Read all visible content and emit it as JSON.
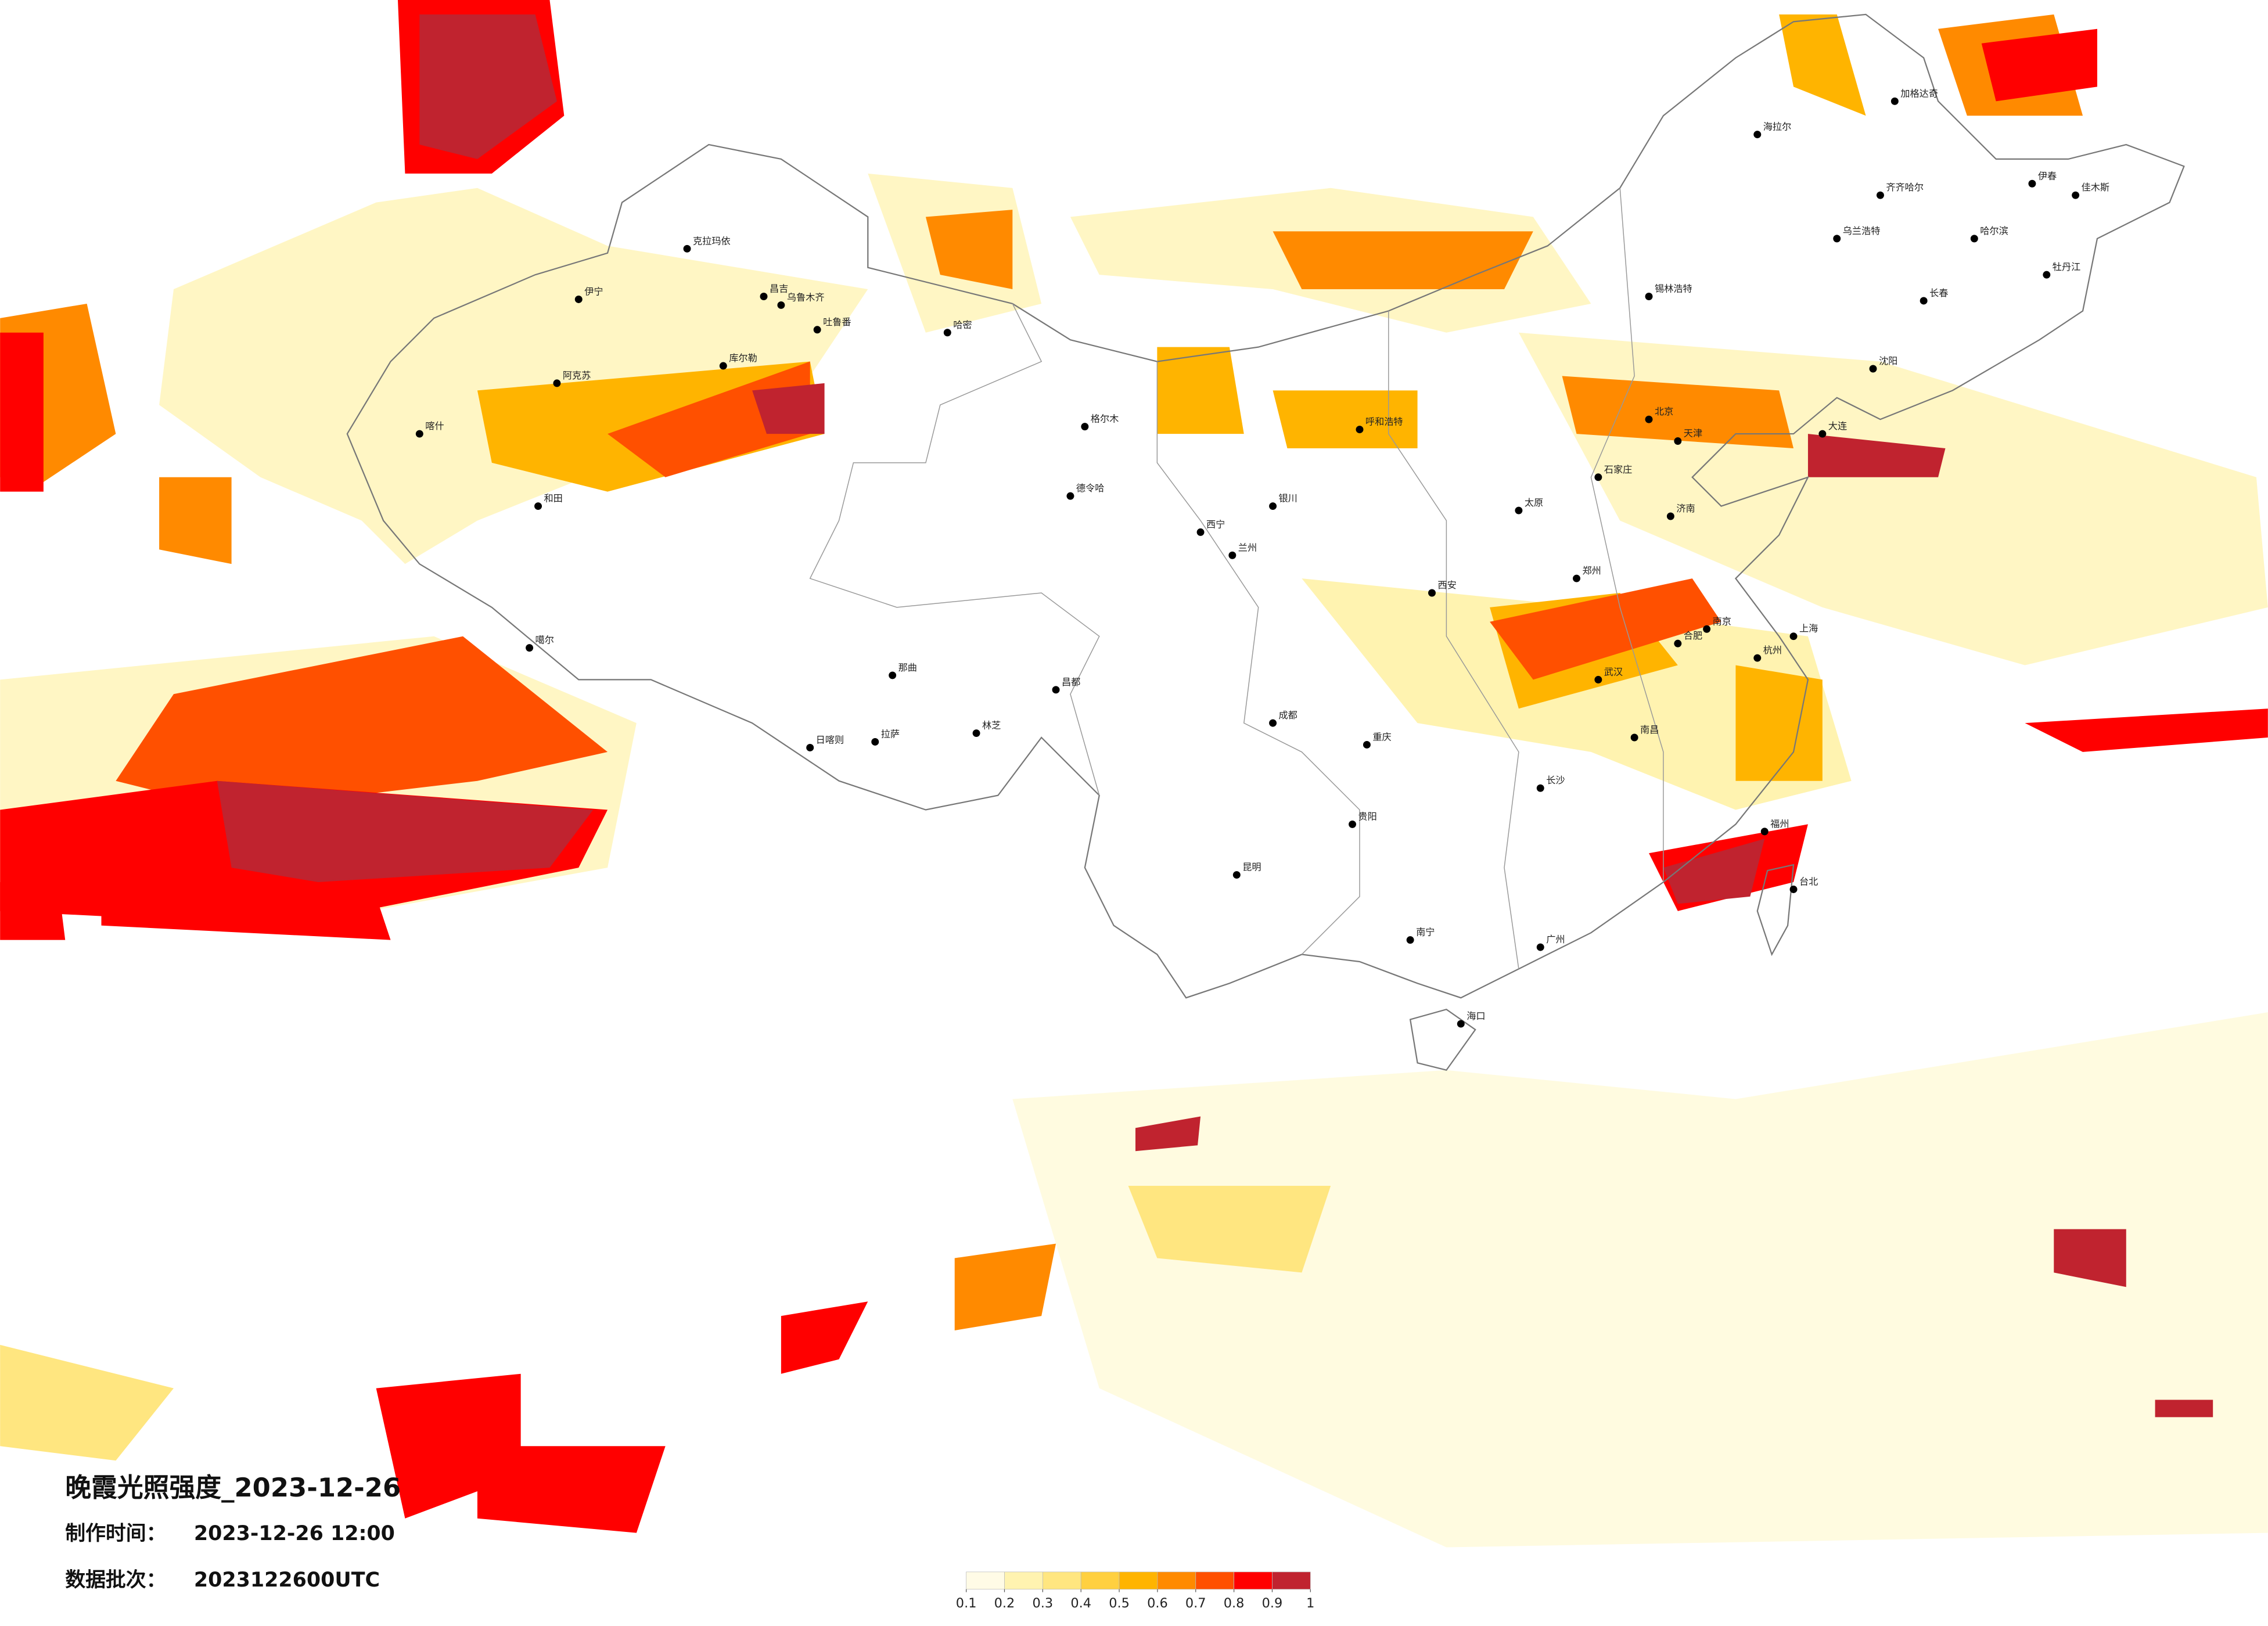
{
  "title": "晚霞光照强度_2023-12-26",
  "made_label": "制作时间：",
  "made_time": "2023-12-26 12:00",
  "batch_label": "数据批次：",
  "batch": "2023122600UTC",
  "legend": {
    "ticks": [
      0.1,
      0.2,
      0.3,
      0.4,
      0.5,
      0.6,
      0.7,
      0.8,
      0.9,
      1
    ],
    "colors": [
      "#fffbe6",
      "#fff3b0",
      "#ffe680",
      "#ffd040",
      "#ffb400",
      "#ff8a00",
      "#ff5000",
      "#ff0000",
      "#c0232f"
    ]
  },
  "cities": [
    "克拉玛依",
    "伊宁",
    "喀什",
    "和田",
    "阿克苏",
    "库尔勒",
    "昌吉",
    "乌鲁木齐",
    "吐鲁番",
    "哈密",
    "噶尔",
    "日喀则",
    "拉萨",
    "林芝",
    "那曲",
    "昌都",
    "格尔木",
    "德令哈",
    "西宁",
    "兰州",
    "银川",
    "呼和浩特",
    "北京",
    "天津",
    "石家庄",
    "太原",
    "济南",
    "郑州",
    "西安",
    "成都",
    "重庆",
    "贵阳",
    "昆明",
    "南宁",
    "广州",
    "海口",
    "福州",
    "台北",
    "杭州",
    "上海",
    "南京",
    "武汉",
    "长沙",
    "南昌",
    "合肥",
    "哈尔滨",
    "长春",
    "沈阳",
    "大连",
    "海拉尔",
    "齐齐哈尔",
    "锡林浩特",
    "乌兰浩特",
    "伊春",
    "佳木斯",
    "牡丹江",
    "加格达奇"
  ]
}
